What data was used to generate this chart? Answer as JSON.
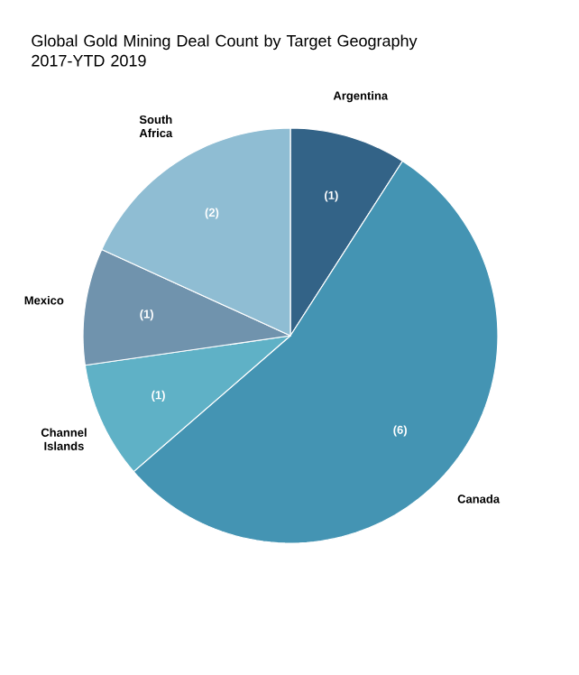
{
  "chart_data": {
    "type": "pie",
    "title": "Global Gold Mining Deal Count by Target Geography 2017-YTD 2019",
    "categories": [
      "Argentina",
      "Canada",
      "Channel Islands",
      "Mexico",
      "South Africa"
    ],
    "values": [
      1,
      6,
      1,
      1,
      2
    ],
    "colors": [
      "#336387",
      "#4494b3",
      "#5fb1c6",
      "#7093ad",
      "#8fbdd3"
    ],
    "value_labels": [
      "(1)",
      "(6)",
      "(1)",
      "(1)",
      "(2)"
    ]
  }
}
